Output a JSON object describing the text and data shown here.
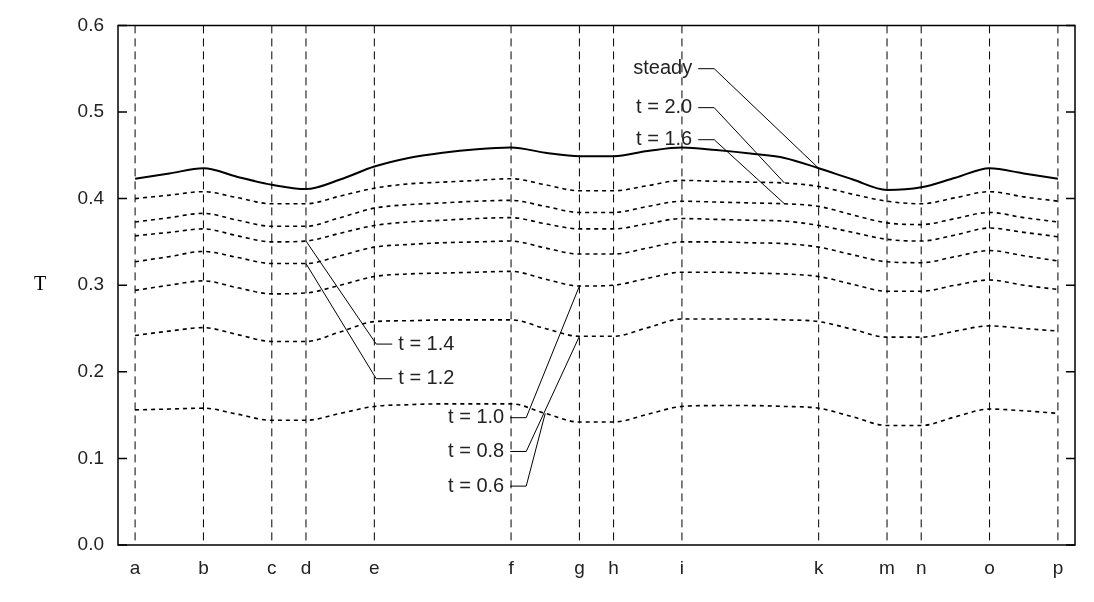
{
  "chart_data": {
    "type": "line",
    "ylabel": "T",
    "categories": [
      "a",
      null,
      "b",
      null,
      "c",
      "d",
      null,
      "e",
      null,
      null,
      null,
      "f",
      null,
      "g",
      "h",
      null,
      "i",
      null,
      null,
      null,
      "k",
      null,
      "m",
      "n",
      null,
      "o",
      null,
      "p"
    ],
    "ylim": [
      0,
      0.6
    ],
    "yticks": [
      {
        "value": 0,
        "label": "0.0"
      },
      {
        "value": 0.1,
        "label": "0.1"
      },
      {
        "value": 0.2,
        "label": "0.2"
      },
      {
        "value": 0.3,
        "label": "0.3"
      },
      {
        "value": 0.4,
        "label": "0.4"
      },
      {
        "value": 0.5,
        "label": "0.5"
      },
      {
        "value": 0.6,
        "label": "0.6"
      }
    ],
    "series": [
      {
        "name": "steady",
        "color": "#000000",
        "line_style": "solid",
        "values": [
          0.423,
          0.429,
          0.435,
          0.425,
          0.416,
          0.411,
          0.422,
          0.437,
          0.447,
          0.453,
          0.457,
          0.459,
          0.453,
          0.449,
          0.449,
          0.455,
          0.459,
          0.456,
          0.452,
          0.447,
          0.435,
          0.422,
          0.41,
          0.413,
          0.424,
          0.435,
          0.429,
          0.423
        ]
      },
      {
        "name": "t = 2.0",
        "color": "#000000",
        "line_style": "dashed",
        "values": [
          0.4,
          0.404,
          0.408,
          0.401,
          0.394,
          0.394,
          0.403,
          0.412,
          0.417,
          0.419,
          0.421,
          0.423,
          0.416,
          0.409,
          0.409,
          0.415,
          0.421,
          0.42,
          0.419,
          0.418,
          0.414,
          0.405,
          0.397,
          0.394,
          0.401,
          0.408,
          0.402,
          0.397
        ]
      },
      {
        "name": "t = 1.6",
        "color": "#000000",
        "line_style": "dashed",
        "values": [
          0.373,
          0.378,
          0.383,
          0.375,
          0.368,
          0.368,
          0.378,
          0.389,
          0.393,
          0.395,
          0.397,
          0.398,
          0.391,
          0.384,
          0.384,
          0.391,
          0.397,
          0.396,
          0.395,
          0.394,
          0.391,
          0.381,
          0.372,
          0.37,
          0.377,
          0.384,
          0.378,
          0.373
        ]
      },
      {
        "name": "t = 1.4",
        "color": "#000000",
        "line_style": "dashed",
        "values": [
          0.357,
          0.361,
          0.365,
          0.357,
          0.35,
          0.351,
          0.36,
          0.369,
          0.373,
          0.375,
          0.377,
          0.378,
          0.371,
          0.365,
          0.365,
          0.371,
          0.377,
          0.376,
          0.375,
          0.374,
          0.369,
          0.361,
          0.353,
          0.351,
          0.358,
          0.366,
          0.361,
          0.356
        ]
      },
      {
        "name": "t = 1.2",
        "color": "#000000",
        "line_style": "dashed",
        "values": [
          0.327,
          0.333,
          0.339,
          0.332,
          0.325,
          0.325,
          0.334,
          0.344,
          0.347,
          0.349,
          0.35,
          0.351,
          0.343,
          0.336,
          0.336,
          0.343,
          0.35,
          0.35,
          0.349,
          0.348,
          0.344,
          0.335,
          0.327,
          0.326,
          0.333,
          0.34,
          0.334,
          0.328
        ]
      },
      {
        "name": "t = 1.0",
        "color": "#000000",
        "line_style": "dashed",
        "values": [
          0.294,
          0.3,
          0.305,
          0.297,
          0.29,
          0.291,
          0.3,
          0.31,
          0.313,
          0.314,
          0.315,
          0.316,
          0.307,
          0.299,
          0.3,
          0.308,
          0.315,
          0.315,
          0.314,
          0.313,
          0.31,
          0.301,
          0.293,
          0.293,
          0.3,
          0.306,
          0.3,
          0.295
        ]
      },
      {
        "name": "t = 0.8",
        "color": "#000000",
        "line_style": "dashed",
        "values": [
          0.242,
          0.247,
          0.251,
          0.243,
          0.235,
          0.235,
          0.246,
          0.258,
          0.259,
          0.26,
          0.26,
          0.26,
          0.25,
          0.241,
          0.241,
          0.251,
          0.261,
          0.261,
          0.261,
          0.26,
          0.258,
          0.249,
          0.24,
          0.24,
          0.247,
          0.253,
          0.25,
          0.247
        ]
      },
      {
        "name": "t = 0.6",
        "color": "#000000",
        "line_style": "dashed",
        "values": [
          0.156,
          0.157,
          0.158,
          0.151,
          0.144,
          0.144,
          0.152,
          0.16,
          0.162,
          0.163,
          0.163,
          0.163,
          0.152,
          0.142,
          0.142,
          0.151,
          0.16,
          0.161,
          0.161,
          0.16,
          0.158,
          0.148,
          0.138,
          0.138,
          0.148,
          0.157,
          0.155,
          0.152
        ]
      }
    ],
    "grid": "x",
    "legend": false,
    "marker": "none"
  }
}
